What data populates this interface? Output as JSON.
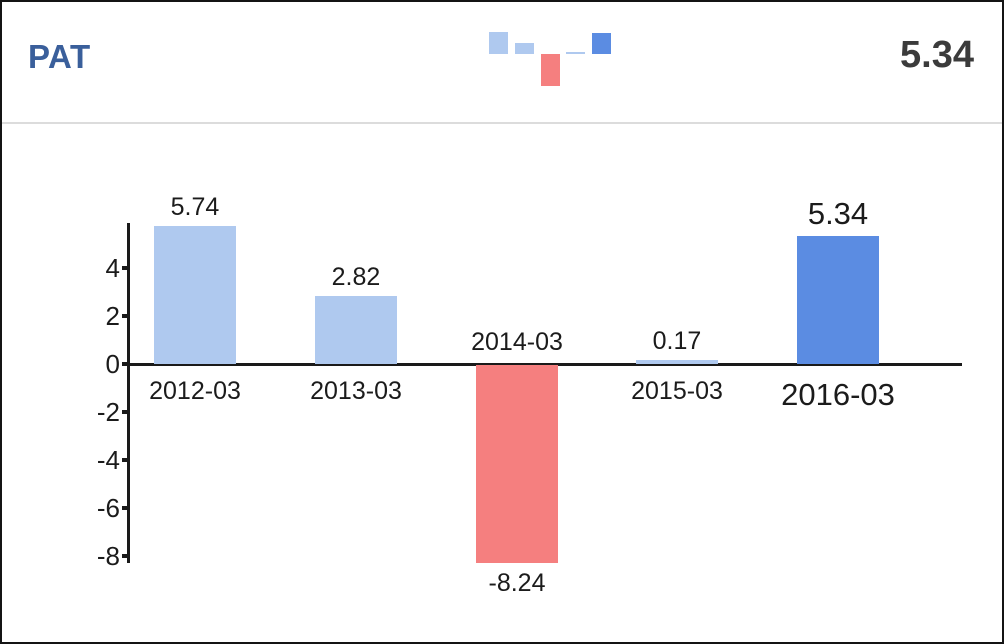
{
  "header": {
    "title": "PAT",
    "current_value": "5.34"
  },
  "chart_data": {
    "type": "bar",
    "title": "PAT",
    "categories": [
      "2012-03",
      "2013-03",
      "2014-03",
      "2015-03",
      "2016-03"
    ],
    "values": [
      5.74,
      2.82,
      -8.24,
      0.17,
      5.34
    ],
    "value_labels": [
      "5.74",
      "2.82",
      "-8.24",
      "0.17",
      "5.34"
    ],
    "yticks": [
      4,
      2,
      0,
      -2,
      -4,
      -6,
      -8
    ],
    "ylim": [
      -8.6,
      5.9
    ],
    "xlabel": "",
    "ylabel": "",
    "grid": false,
    "legend": false,
    "highlight_index": 4,
    "bar_colors": [
      "#afc9ef",
      "#afc9ef",
      "#f57f7f",
      "#afc9ef",
      "#5b8ce2"
    ]
  },
  "colors": {
    "title_text": "#3a5f9b",
    "header_value_text": "#3b3b3b",
    "divider": "#dcdcdc",
    "frame_border": "#141414",
    "axis": "#1a1a1a",
    "light_blue_bar": "#afc9ef",
    "negative_red_bar": "#f57f7f",
    "current_blue_bar": "#5b8ce2",
    "background": "#ffffff"
  }
}
